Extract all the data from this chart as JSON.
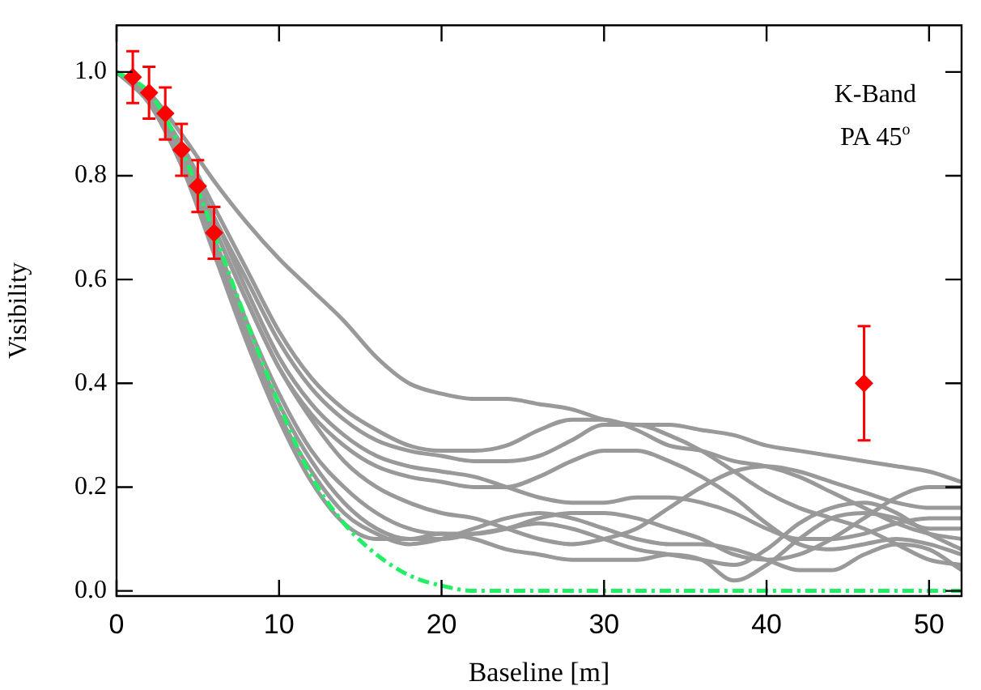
{
  "chart_data": {
    "type": "line",
    "xlabel": "Baseline [m]",
    "ylabel": "Visibility",
    "annotations": [
      "K-Band",
      "PA 45$^{o}$"
    ],
    "x": [
      0,
      2,
      4,
      6,
      8,
      10,
      12,
      14,
      16,
      18,
      20,
      22,
      24,
      26,
      28,
      30,
      32,
      34,
      36,
      38,
      40,
      42,
      44,
      46,
      48,
      50,
      52
    ],
    "xlim": [
      0,
      52
    ],
    "xticks": [
      0,
      10,
      20,
      30,
      40,
      50
    ],
    "ylim": [
      -0.01,
      1.09
    ],
    "yticks": [
      {
        "value": 0,
        "label": "0.0"
      },
      {
        "value": 0.2,
        "label": "0.2"
      },
      {
        "value": 0.4,
        "label": "0.4"
      },
      {
        "value": 0.6,
        "label": "0.6"
      },
      {
        "value": 0.8,
        "label": "0.8"
      },
      {
        "value": 1.0,
        "label": "1.0"
      }
    ],
    "grid": false,
    "legend": false,
    "marker": "none",
    "line_style": "solid",
    "series": [
      {
        "color": "#999999",
        "values": [
          1,
          0.96,
          0.88,
          0.79,
          0.71,
          0.64,
          0.58,
          0.52,
          0.45,
          0.4,
          0.38,
          0.37,
          0.37,
          0.36,
          0.35,
          0.33,
          0.32,
          0.32,
          0.31,
          0.3,
          0.28,
          0.27,
          0.26,
          0.25,
          0.24,
          0.23,
          0.21
        ]
      },
      {
        "color": "#999999",
        "values": [
          1,
          0.95,
          0.86,
          0.74,
          0.62,
          0.5,
          0.41,
          0.35,
          0.31,
          0.28,
          0.27,
          0.27,
          0.28,
          0.31,
          0.33,
          0.33,
          0.31,
          0.28,
          0.27,
          0.25,
          0.24,
          0.22,
          0.19,
          0.16,
          0.13,
          0.11,
          0.1
        ]
      },
      {
        "color": "#999999",
        "values": [
          1,
          0.95,
          0.85,
          0.72,
          0.6,
          0.48,
          0.39,
          0.33,
          0.29,
          0.27,
          0.26,
          0.25,
          0.25,
          0.26,
          0.29,
          0.32,
          0.32,
          0.3,
          0.27,
          0.23,
          0.19,
          0.16,
          0.14,
          0.12,
          0.09,
          0.06,
          0.05
        ]
      },
      {
        "color": "#999999",
        "values": [
          1,
          0.95,
          0.85,
          0.72,
          0.58,
          0.45,
          0.36,
          0.3,
          0.26,
          0.24,
          0.23,
          0.22,
          0.2,
          0.18,
          0.17,
          0.17,
          0.18,
          0.18,
          0.17,
          0.15,
          0.12,
          0.1,
          0.1,
          0.11,
          0.13,
          0.14,
          0.14
        ]
      },
      {
        "color": "#999999",
        "values": [
          1,
          0.95,
          0.84,
          0.7,
          0.56,
          0.43,
          0.33,
          0.25,
          0.2,
          0.17,
          0.15,
          0.14,
          0.12,
          0.1,
          0.09,
          0.1,
          0.12,
          0.16,
          0.2,
          0.23,
          0.24,
          0.23,
          0.21,
          0.19,
          0.17,
          0.16,
          0.16
        ]
      },
      {
        "color": "#999999",
        "values": [
          1,
          0.95,
          0.84,
          0.7,
          0.56,
          0.43,
          0.34,
          0.28,
          0.24,
          0.22,
          0.21,
          0.2,
          0.2,
          0.22,
          0.25,
          0.27,
          0.27,
          0.25,
          0.22,
          0.18,
          0.13,
          0.09,
          0.08,
          0.09,
          0.1,
          0.09,
          0.07
        ]
      },
      {
        "color": "#999999",
        "values": [
          1,
          0.95,
          0.83,
          0.68,
          0.52,
          0.38,
          0.27,
          0.2,
          0.15,
          0.12,
          0.11,
          0.11,
          0.12,
          0.14,
          0.15,
          0.15,
          0.14,
          0.12,
          0.1,
          0.07,
          0.06,
          0.07,
          0.1,
          0.14,
          0.18,
          0.2,
          0.2
        ]
      },
      {
        "color": "#999999",
        "values": [
          1,
          0.95,
          0.83,
          0.67,
          0.5,
          0.36,
          0.25,
          0.17,
          0.12,
          0.1,
          0.1,
          0.11,
          0.12,
          0.13,
          0.12,
          0.1,
          0.08,
          0.07,
          0.06,
          0.05,
          0.08,
          0.13,
          0.16,
          0.17,
          0.15,
          0.11,
          0.08
        ]
      },
      {
        "color": "#999999",
        "values": [
          1,
          0.94,
          0.82,
          0.66,
          0.49,
          0.34,
          0.23,
          0.15,
          0.11,
          0.09,
          0.1,
          0.12,
          0.14,
          0.15,
          0.14,
          0.12,
          0.1,
          0.09,
          0.09,
          0.08,
          0.06,
          0.04,
          0.04,
          0.07,
          0.09,
          0.08,
          0.04
        ]
      },
      {
        "color": "#999999",
        "values": [
          1,
          0.94,
          0.82,
          0.65,
          0.48,
          0.33,
          0.21,
          0.13,
          0.1,
          0.1,
          0.11,
          0.1,
          0.08,
          0.07,
          0.06,
          0.06,
          0.06,
          0.07,
          0.06,
          0.02,
          0.05,
          0.1,
          0.14,
          0.15,
          0.14,
          0.12,
          0.12
        ]
      },
      {
        "color": "#22ee66",
        "line_style": "dashed",
        "values": [
          1,
          0.96,
          0.85,
          0.69,
          0.52,
          0.36,
          0.22,
          0.13,
          0.07,
          0.03,
          0.01,
          0,
          0,
          0,
          0,
          0,
          0,
          0,
          0,
          0,
          0,
          0,
          0,
          0,
          0,
          0,
          0
        ]
      },
      {
        "type": "scatter",
        "color": "#ff0000",
        "marker": "diamond",
        "x": [
          1,
          2,
          3,
          4,
          5,
          6,
          46
        ],
        "values": [
          0.99,
          0.96,
          0.92,
          0.85,
          0.78,
          0.69,
          0.4
        ],
        "errors": [
          0.05,
          0.05,
          0.05,
          0.05,
          0.05,
          0.05,
          [
            0.29,
            0.51
          ]
        ]
      }
    ]
  }
}
